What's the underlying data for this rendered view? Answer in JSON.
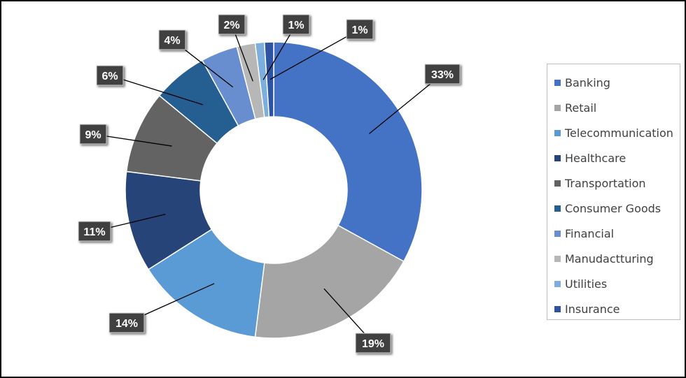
{
  "chart_data": {
    "type": "pie",
    "title": "",
    "categories": [
      "Banking",
      "Retail",
      "Telecommunication",
      "Healthcare",
      "Transportation",
      "Consumer Goods",
      "Financial",
      "Manudactturing",
      "Utilities",
      "Insurance"
    ],
    "values": [
      33,
      19,
      14,
      11,
      9,
      6,
      4,
      2,
      1,
      1
    ],
    "labels": [
      "33%",
      "19%",
      "14%",
      "11%",
      "9%",
      "6%",
      "4%",
      "2%",
      "1%",
      "1%"
    ],
    "colors": [
      "#4472C4",
      "#A5A5A5",
      "#5B9BD5",
      "#264478",
      "#636363",
      "#255E91",
      "#698ED0",
      "#B7B7B7",
      "#7CAFDD",
      "#2E54A1"
    ],
    "legend_position": "right",
    "donut": true
  }
}
